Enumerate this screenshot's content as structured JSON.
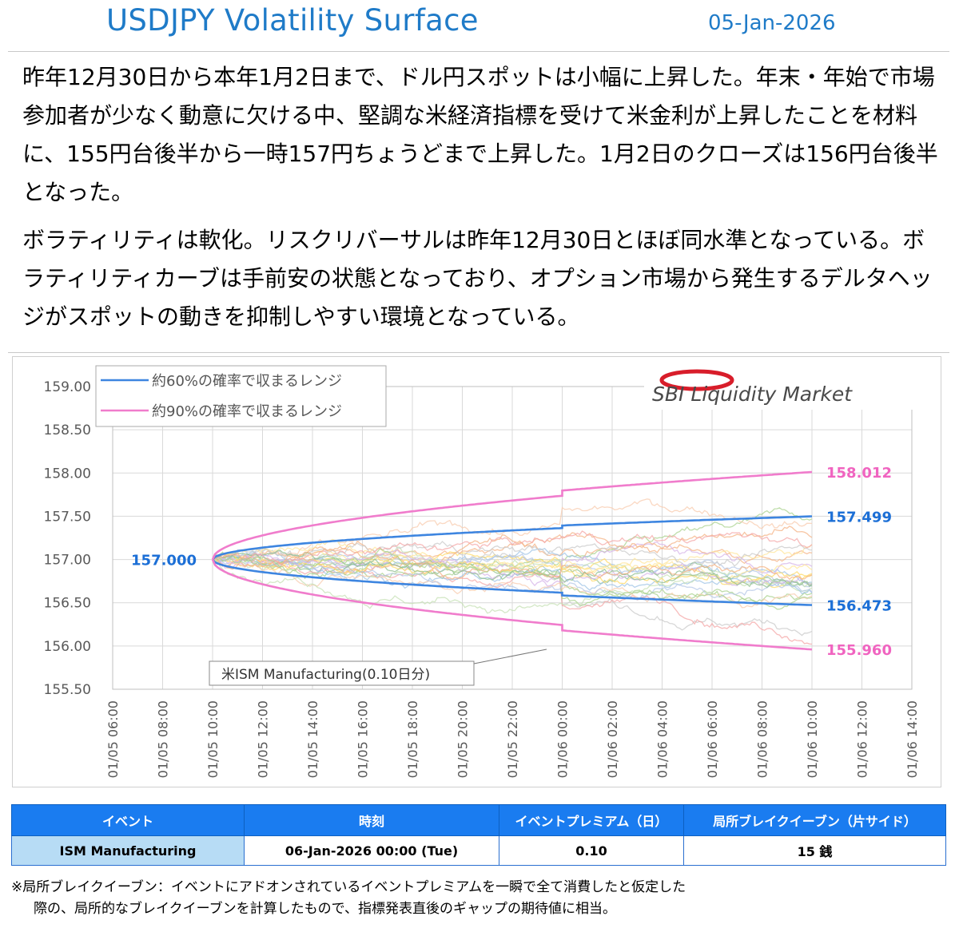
{
  "header": {
    "title": "USDJPY Volatility Surface",
    "date": "05-Jan-2026"
  },
  "commentary": {
    "paragraph1": "昨年12月30日から本年1月2日まで、ドル円スポットは小幅に上昇した。年末・年始で市場参加者が少なく動意に欠ける中、堅調な米経済指標を受けて米金利が上昇したことを材料に、155円台後半から一時157円ちょうどまで上昇した。1月2日のクローズは156円台後半となった。",
    "paragraph2": "ボラティリティは軟化。リスクリバーサルは昨年12月30日とほぼ同水準となっている。ボラティリティカーブは手前安の状態となっており、オプション市場から発生するデルタヘッジがスポットの動きを抑制しやすい環境となっている。"
  },
  "chart_data": {
    "type": "line",
    "logo": "SBI Liquidity Market",
    "x_ticks": [
      "01/05 06:00",
      "01/05 08:00",
      "01/05 10:00",
      "01/05 12:00",
      "01/05 14:00",
      "01/05 16:00",
      "01/05 18:00",
      "01/05 20:00",
      "01/05 22:00",
      "01/06 00:00",
      "01/06 02:00",
      "01/06 04:00",
      "01/06 06:00",
      "01/06 08:00",
      "01/06 10:00",
      "01/06 12:00",
      "01/06 14:00"
    ],
    "y_ticks": [
      "159.00",
      "158.50",
      "158.00",
      "157.50",
      "157.00",
      "156.50",
      "156.00",
      "155.50"
    ],
    "ylim": [
      155.5,
      159.0
    ],
    "xlim_hours": [
      0,
      32
    ],
    "start_hour": 4,
    "end_hour": 28,
    "event_hour": 18,
    "spot": 157.0,
    "spot_label": "157.000",
    "series": [
      {
        "name": "約60%の確率で収まるレンジ",
        "color": "#3d85e0",
        "upper_end": 157.499,
        "lower_end": 156.473,
        "upper_label": "157.499",
        "lower_label": "156.473"
      },
      {
        "name": "約90%の確率で収まるレンジ",
        "color": "#f07ccc",
        "upper_end": 158.012,
        "lower_end": 155.96,
        "upper_label": "158.012",
        "lower_label": "155.960"
      }
    ],
    "annotation": "米ISM Manufacturing(0.10日分)",
    "grid": true,
    "legend_position": "top-left"
  },
  "event_table": {
    "headers": [
      "イベント",
      "時刻",
      "イベントプレミアム（日）",
      "局所ブレイクイーブン（片サイド）"
    ],
    "rows": [
      [
        "ISM Manufacturing",
        "06-Jan-2026 00:00 (Tue)",
        "0.10",
        "15 銭"
      ]
    ]
  },
  "footnote": {
    "line1": "※局所ブレイクイーブン：イベントにアドオンされているイベントプレミアムを一瞬で全て消費したと仮定した",
    "line2": "際の、局所的なブレイクイーブンを計算したもので、指標発表直後のギャップの期待値に相当。"
  },
  "colors": {
    "title": "#1f7bc8",
    "range60": "#3d85e0",
    "range90": "#f07ccc",
    "table_header": "#1a7cf0",
    "table_first_cell": "#b7dcf5"
  }
}
